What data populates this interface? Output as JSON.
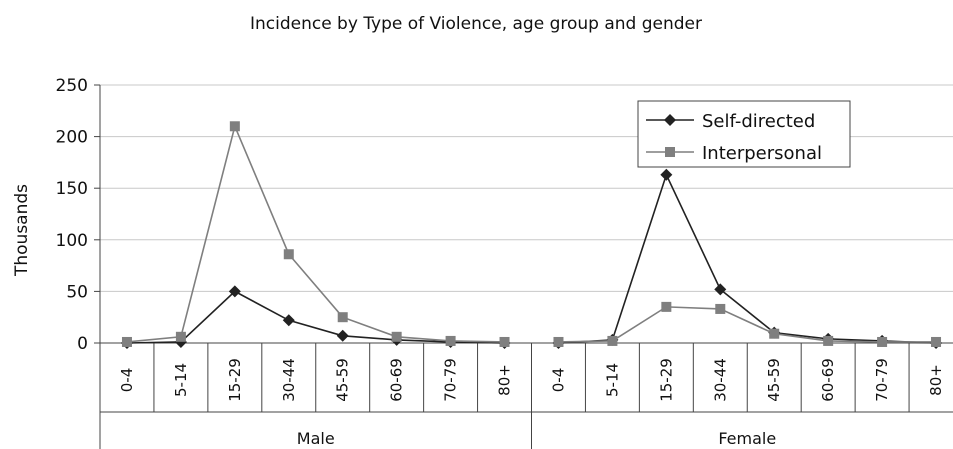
{
  "chart_data": {
    "type": "line",
    "title": "Incidence by Type of Violence, age group and gender",
    "ylabel": "Thousands",
    "xlabel": "",
    "ylim": [
      0,
      250
    ],
    "yticks": [
      0,
      50,
      100,
      150,
      200,
      250
    ],
    "grid": true,
    "legend_position": "top-right",
    "groups": [
      {
        "name": "Male",
        "categories": [
          "0-4",
          "5-14",
          "15-29",
          "30-44",
          "45-59",
          "60-69",
          "70-79",
          "80+"
        ]
      },
      {
        "name": "Female",
        "categories": [
          "0-4",
          "5-14",
          "15-29",
          "30-44",
          "45-59",
          "60-69",
          "70-79",
          "80+"
        ]
      }
    ],
    "series": [
      {
        "name": "Self-directed",
        "marker": "diamond",
        "color": "#222222",
        "values": [
          [
            0,
            1,
            50,
            22,
            7,
            3,
            1,
            0
          ],
          [
            0,
            3,
            163,
            52,
            10,
            4,
            2,
            0
          ]
        ]
      },
      {
        "name": "Interpersonal",
        "marker": "square",
        "color": "#7f7f7f",
        "values": [
          [
            1,
            6,
            210,
            86,
            25,
            6,
            2,
            1
          ],
          [
            1,
            2,
            35,
            33,
            9,
            2,
            1,
            1
          ]
        ]
      }
    ]
  }
}
